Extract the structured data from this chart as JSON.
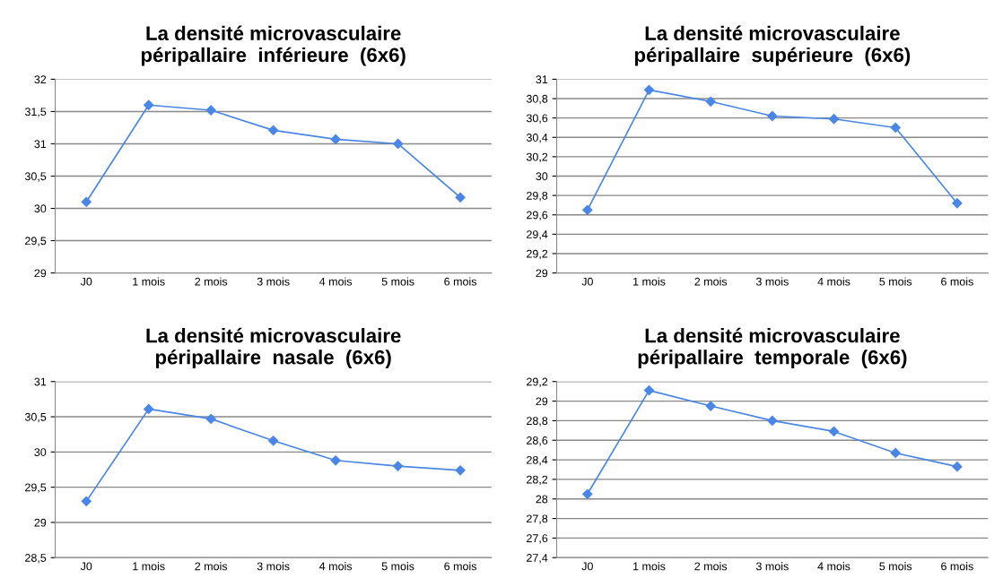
{
  "chart_data": [
    {
      "type": "line",
      "title": "La densité microvasculaire\npéripallaire  inférieure  (6x6)",
      "categories": [
        "J0",
        "1 mois",
        "2 mois",
        "3 mois",
        "4 mois",
        "5 mois",
        "6 mois"
      ],
      "series": [
        {
          "color": "#4a86e8",
          "values": [
            30.1,
            31.6,
            31.52,
            31.21,
            31.07,
            31.0,
            30.17
          ]
        }
      ],
      "ylim": [
        29,
        32
      ],
      "yticks": [
        29,
        {
          "value": 29.5,
          "label": "29,5"
        },
        30,
        {
          "value": 30.5,
          "label": "30,5"
        },
        31,
        {
          "value": 31.5,
          "label": "31,5"
        },
        32
      ],
      "grid": "y",
      "marker": "diamond"
    },
    {
      "type": "line",
      "title": "La densité microvasculaire\npéripallaire  supérieure  (6x6)",
      "categories": [
        "J0",
        "1 mois",
        "2 mois",
        "3 mois",
        "4 mois",
        "5 mois",
        "6 mois"
      ],
      "series": [
        {
          "color": "#4a86e8",
          "values": [
            29.65,
            30.89,
            30.77,
            30.62,
            30.59,
            30.5,
            29.72
          ]
        }
      ],
      "ylim": [
        29,
        31
      ],
      "yticks": [
        29,
        {
          "value": 29.2,
          "label": "29,2"
        },
        {
          "value": 29.4,
          "label": "29,4"
        },
        {
          "value": 29.6,
          "label": "29,6"
        },
        {
          "value": 29.8,
          "label": "29,8"
        },
        30,
        {
          "value": 30.2,
          "label": "30,2"
        },
        {
          "value": 30.4,
          "label": "30,4"
        },
        {
          "value": 30.6,
          "label": "30,6"
        },
        {
          "value": 30.8,
          "label": "30,8"
        },
        31
      ],
      "grid": "y",
      "marker": "diamond"
    },
    {
      "type": "line",
      "title": "La densité microvasculaire\npéripallaire  nasale  (6x6)",
      "categories": [
        "J0",
        "1 mois",
        "2 mois",
        "3 mois",
        "4 mois",
        "5 mois",
        "6 mois"
      ],
      "series": [
        {
          "color": "#4a86e8",
          "values": [
            29.3,
            30.61,
            30.47,
            30.16,
            29.88,
            29.8,
            29.74
          ]
        }
      ],
      "ylim": [
        28.5,
        31
      ],
      "yticks": [
        {
          "value": 28.5,
          "label": "28,5"
        },
        29,
        {
          "value": 29.5,
          "label": "29,5"
        },
        30,
        {
          "value": 30.5,
          "label": "30,5"
        },
        31
      ],
      "grid": "y",
      "marker": "diamond"
    },
    {
      "type": "line",
      "title": "La densité microvasculaire\npéripallaire  temporale  (6x6)",
      "categories": [
        "J0",
        "1 mois",
        "2 mois",
        "3 mois",
        "4 mois",
        "5 mois",
        "6 mois"
      ],
      "series": [
        {
          "color": "#4a86e8",
          "values": [
            28.05,
            29.11,
            28.95,
            28.8,
            28.69,
            28.47,
            28.33
          ]
        }
      ],
      "ylim": [
        27.4,
        29.2
      ],
      "yticks": [
        {
          "value": 27.4,
          "label": "27,4"
        },
        {
          "value": 27.6,
          "label": "27,6"
        },
        {
          "value": 27.8,
          "label": "27,8"
        },
        28,
        {
          "value": 28.2,
          "label": "28,2"
        },
        {
          "value": 28.4,
          "label": "28,4"
        },
        {
          "value": 28.6,
          "label": "28,6"
        },
        {
          "value": 28.8,
          "label": "28,8"
        },
        29,
        {
          "value": 29.2,
          "label": "29,2"
        }
      ],
      "grid": "y",
      "marker": "diamond"
    }
  ]
}
